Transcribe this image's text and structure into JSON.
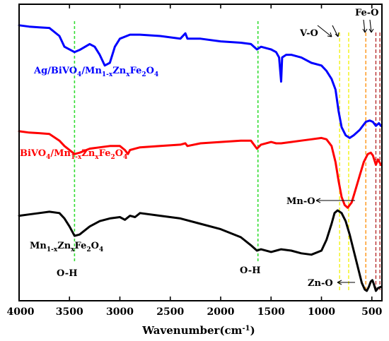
{
  "chart_data": {
    "type": "line",
    "title": "",
    "xlabel": "Wavenumber(cm",
    "xlabel_sup": "-1",
    "xlabel_close": ")",
    "ylabel": "",
    "xlim": [
      4000,
      400
    ],
    "x_reversed": true,
    "x_ticks": [
      4000,
      3500,
      3000,
      2500,
      2000,
      1500,
      1000,
      500
    ],
    "grid": false,
    "series": [
      {
        "name": "Ag/BiVO4/Mn1-xZnxFe2O4",
        "color": "#0000ff",
        "label_parts": [
          {
            "t": "Ag/BiVO",
            "sub": false
          },
          {
            "t": "4",
            "sub": true
          },
          {
            "t": "/Mn",
            "sub": false
          },
          {
            "t": "1-x",
            "sub": true
          },
          {
            "t": "Zn",
            "sub": false
          },
          {
            "t": "x",
            "sub": true
          },
          {
            "t": "Fe",
            "sub": false
          },
          {
            "t": "2",
            "sub": true
          },
          {
            "t": "O",
            "sub": false
          },
          {
            "t": "4",
            "sub": true
          }
        ],
        "points": [
          [
            4000,
            0.94
          ],
          [
            3900,
            0.935
          ],
          [
            3800,
            0.932
          ],
          [
            3700,
            0.93
          ],
          [
            3600,
            0.9
          ],
          [
            3550,
            0.86
          ],
          [
            3450,
            0.84
          ],
          [
            3400,
            0.848
          ],
          [
            3300,
            0.87
          ],
          [
            3250,
            0.86
          ],
          [
            3200,
            0.83
          ],
          [
            3150,
            0.79
          ],
          [
            3100,
            0.8
          ],
          [
            3050,
            0.86
          ],
          [
            3000,
            0.89
          ],
          [
            2900,
            0.905
          ],
          [
            2800,
            0.905
          ],
          [
            2600,
            0.9
          ],
          [
            2400,
            0.89
          ],
          [
            2350,
            0.91
          ],
          [
            2330,
            0.89
          ],
          [
            2200,
            0.89
          ],
          [
            2000,
            0.88
          ],
          [
            1800,
            0.875
          ],
          [
            1700,
            0.87
          ],
          [
            1640,
            0.85
          ],
          [
            1600,
            0.86
          ],
          [
            1500,
            0.85
          ],
          [
            1450,
            0.84
          ],
          [
            1420,
            0.82
          ],
          [
            1400,
            0.73
          ],
          [
            1390,
            0.82
          ],
          [
            1350,
            0.83
          ],
          [
            1300,
            0.83
          ],
          [
            1200,
            0.82
          ],
          [
            1100,
            0.8
          ],
          [
            1000,
            0.79
          ],
          [
            950,
            0.77
          ],
          [
            900,
            0.74
          ],
          [
            860,
            0.7
          ],
          [
            830,
            0.62
          ],
          [
            800,
            0.56
          ],
          [
            760,
            0.53
          ],
          [
            720,
            0.52
          ],
          [
            680,
            0.53
          ],
          [
            620,
            0.55
          ],
          [
            560,
            0.58
          ],
          [
            520,
            0.585
          ],
          [
            490,
            0.58
          ],
          [
            460,
            0.565
          ],
          [
            430,
            0.575
          ],
          [
            410,
            0.565
          ]
        ]
      },
      {
        "name": "BiVO4/Mn1-xZnxFe2O4",
        "color": "#ff0000",
        "label_parts": [
          {
            "t": "BiVO",
            "sub": false
          },
          {
            "t": "4",
            "sub": true
          },
          {
            "t": "/Mn",
            "sub": false
          },
          {
            "t": "1-x",
            "sub": true
          },
          {
            "t": "Zn",
            "sub": false
          },
          {
            "t": "x",
            "sub": true
          },
          {
            "t": "Fe",
            "sub": false
          },
          {
            "t": "2",
            "sub": true
          },
          {
            "t": "O",
            "sub": false
          },
          {
            "t": "4",
            "sub": true
          }
        ],
        "points": [
          [
            4000,
            0.545
          ],
          [
            3900,
            0.54
          ],
          [
            3800,
            0.538
          ],
          [
            3700,
            0.535
          ],
          [
            3600,
            0.51
          ],
          [
            3550,
            0.49
          ],
          [
            3450,
            0.46
          ],
          [
            3400,
            0.465
          ],
          [
            3300,
            0.48
          ],
          [
            3200,
            0.485
          ],
          [
            3100,
            0.49
          ],
          [
            3000,
            0.49
          ],
          [
            2950,
            0.475
          ],
          [
            2920,
            0.46
          ],
          [
            2900,
            0.475
          ],
          [
            2850,
            0.48
          ],
          [
            2800,
            0.485
          ],
          [
            2600,
            0.49
          ],
          [
            2400,
            0.495
          ],
          [
            2350,
            0.5
          ],
          [
            2330,
            0.49
          ],
          [
            2200,
            0.5
          ],
          [
            2000,
            0.505
          ],
          [
            1800,
            0.51
          ],
          [
            1700,
            0.51
          ],
          [
            1640,
            0.48
          ],
          [
            1600,
            0.495
          ],
          [
            1500,
            0.505
          ],
          [
            1450,
            0.5
          ],
          [
            1400,
            0.5
          ],
          [
            1300,
            0.505
          ],
          [
            1200,
            0.51
          ],
          [
            1100,
            0.515
          ],
          [
            1000,
            0.52
          ],
          [
            950,
            0.515
          ],
          [
            900,
            0.49
          ],
          [
            860,
            0.43
          ],
          [
            830,
            0.36
          ],
          [
            800,
            0.3
          ],
          [
            770,
            0.27
          ],
          [
            740,
            0.26
          ],
          [
            700,
            0.28
          ],
          [
            660,
            0.33
          ],
          [
            620,
            0.38
          ],
          [
            580,
            0.43
          ],
          [
            540,
            0.46
          ],
          [
            510,
            0.465
          ],
          [
            490,
            0.455
          ],
          [
            460,
            0.42
          ],
          [
            440,
            0.44
          ],
          [
            410,
            0.42
          ]
        ]
      },
      {
        "name": "Mn1-xZnxFe2O4",
        "color": "#000000",
        "label_parts": [
          {
            "t": "Mn",
            "sub": false
          },
          {
            "t": "1-x",
            "sub": true
          },
          {
            "t": "Zn",
            "sub": false
          },
          {
            "t": "x",
            "sub": true
          },
          {
            "t": "Fe",
            "sub": false
          },
          {
            "t": "2",
            "sub": true
          },
          {
            "t": "O",
            "sub": false
          },
          {
            "t": "4",
            "sub": true
          }
        ],
        "points": [
          [
            4000,
            0.23
          ],
          [
            3900,
            0.235
          ],
          [
            3800,
            0.24
          ],
          [
            3700,
            0.245
          ],
          [
            3600,
            0.24
          ],
          [
            3550,
            0.22
          ],
          [
            3500,
            0.19
          ],
          [
            3450,
            0.155
          ],
          [
            3400,
            0.16
          ],
          [
            3300,
            0.19
          ],
          [
            3200,
            0.21
          ],
          [
            3100,
            0.22
          ],
          [
            3000,
            0.225
          ],
          [
            2950,
            0.215
          ],
          [
            2900,
            0.23
          ],
          [
            2850,
            0.225
          ],
          [
            2800,
            0.24
          ],
          [
            2600,
            0.23
          ],
          [
            2400,
            0.22
          ],
          [
            2200,
            0.2
          ],
          [
            2000,
            0.18
          ],
          [
            1800,
            0.15
          ],
          [
            1700,
            0.12
          ],
          [
            1640,
            0.1
          ],
          [
            1600,
            0.105
          ],
          [
            1500,
            0.095
          ],
          [
            1450,
            0.1
          ],
          [
            1400,
            0.105
          ],
          [
            1300,
            0.1
          ],
          [
            1200,
            0.09
          ],
          [
            1100,
            0.085
          ],
          [
            1000,
            0.1
          ],
          [
            950,
            0.14
          ],
          [
            900,
            0.2
          ],
          [
            870,
            0.24
          ],
          [
            840,
            0.25
          ],
          [
            800,
            0.24
          ],
          [
            760,
            0.21
          ],
          [
            720,
            0.16
          ],
          [
            680,
            0.1
          ],
          [
            640,
            0.04
          ],
          [
            600,
            -0.02
          ],
          [
            570,
            -0.045
          ],
          [
            550,
            -0.05
          ],
          [
            530,
            -0.035
          ],
          [
            510,
            -0.015
          ],
          [
            495,
            -0.01
          ],
          [
            480,
            -0.025
          ],
          [
            460,
            -0.05
          ],
          [
            440,
            -0.04
          ],
          [
            410,
            -0.035
          ]
        ]
      }
    ],
    "markers": [
      {
        "x": 3450,
        "color": "#33dd33",
        "label": "O-H",
        "kind": "oh"
      },
      {
        "x": 1630,
        "color": "#33dd33",
        "label": "O-H",
        "kind": "oh"
      },
      {
        "x": 820,
        "color": "#f2f200",
        "kind": "band"
      },
      {
        "x": 730,
        "color": "#f2f200",
        "kind": "band"
      },
      {
        "x": 560,
        "color": "#ff8c00",
        "kind": "band"
      },
      {
        "x": 460,
        "color": "#b22222",
        "kind": "band"
      },
      {
        "x": 420,
        "color": "#b22222",
        "kind": "band"
      }
    ],
    "annotations": [
      {
        "text": "V-O",
        "points_to": [
          820,
          730
        ]
      },
      {
        "text": "Fe-O",
        "points_to": [
          460,
          420
        ]
      },
      {
        "text": "Mn-O",
        "points_to": [
          560
        ]
      },
      {
        "text": "Zn-O",
        "points_to": [
          560
        ]
      }
    ]
  }
}
